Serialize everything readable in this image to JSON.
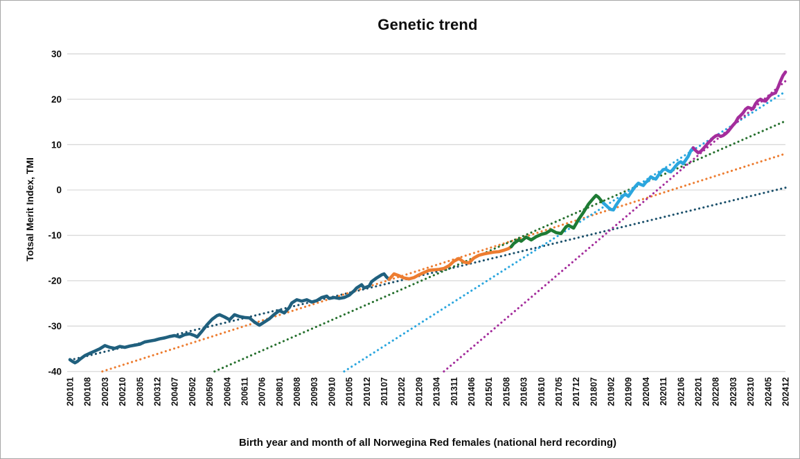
{
  "window": {
    "background": "#ffffff",
    "border_color": "#a6a6a6",
    "gridline_color": "#d9d9d9",
    "text_color": "#0d0d0d"
  },
  "chart_data": {
    "type": "line",
    "title": "Genetic trend",
    "xlabel": "Birth year and month of all Norwegina Red females (national herd recording)",
    "ylabel": "Totsal Merit Index, TMI",
    "ylim": [
      -40,
      30
    ],
    "y_ticks": [
      30,
      20,
      10,
      0,
      -10,
      -20,
      -30,
      -40
    ],
    "grid": "horizontal",
    "legend": "none",
    "x_unit": "months since 200101 (monthly birth cohorts)",
    "x_tick_interval_months": 7,
    "x_tick_labels": [
      "200101",
      "200108",
      "200203",
      "200210",
      "200305",
      "200312",
      "200407",
      "200502",
      "200509",
      "200604",
      "200611",
      "200706",
      "200801",
      "200808",
      "200903",
      "200910",
      "201005",
      "201012",
      "201107",
      "201202",
      "201209",
      "201304",
      "201311",
      "201406",
      "201501",
      "201508",
      "201603",
      "201610",
      "201705",
      "201712",
      "201807",
      "201902",
      "201909",
      "202004",
      "202011",
      "202106",
      "202201",
      "202208",
      "202303",
      "202310",
      "202405",
      "202412"
    ],
    "series": [
      {
        "id": "tmi-cohort-2001-2011",
        "color": "#20607E",
        "points": [
          [
            0,
            -37.4
          ],
          [
            1,
            -37.8
          ],
          [
            2,
            -38.1
          ],
          [
            3,
            -37.8
          ],
          [
            4,
            -37.3
          ],
          [
            6,
            -36.5
          ],
          [
            8,
            -36.0
          ],
          [
            10,
            -35.5
          ],
          [
            12,
            -35.0
          ],
          [
            14,
            -34.3
          ],
          [
            16,
            -34.7
          ],
          [
            18,
            -34.9
          ],
          [
            20,
            -34.5
          ],
          [
            22,
            -34.7
          ],
          [
            24,
            -34.4
          ],
          [
            26,
            -34.2
          ],
          [
            28,
            -34.0
          ],
          [
            30,
            -33.5
          ],
          [
            32,
            -33.3
          ],
          [
            34,
            -33.1
          ],
          [
            36,
            -32.8
          ],
          [
            38,
            -32.6
          ],
          [
            40,
            -32.3
          ],
          [
            42,
            -32.1
          ],
          [
            44,
            -32.4
          ],
          [
            46,
            -31.9
          ],
          [
            48,
            -31.7
          ],
          [
            50,
            -32.1
          ],
          [
            51,
            -32.4
          ],
          [
            53,
            -31.1
          ],
          [
            55,
            -29.7
          ],
          [
            57,
            -28.5
          ],
          [
            59,
            -27.7
          ],
          [
            60,
            -27.5
          ],
          [
            62,
            -28.0
          ],
          [
            64,
            -28.6
          ],
          [
            66,
            -27.5
          ],
          [
            68,
            -27.9
          ],
          [
            70,
            -28.1
          ],
          [
            72,
            -28.2
          ],
          [
            74,
            -29.1
          ],
          [
            76,
            -29.8
          ],
          [
            78,
            -29.1
          ],
          [
            80,
            -28.4
          ],
          [
            82,
            -27.4
          ],
          [
            84,
            -26.6
          ],
          [
            86,
            -27.1
          ],
          [
            88,
            -25.9
          ],
          [
            89,
            -24.9
          ],
          [
            91,
            -24.2
          ],
          [
            93,
            -24.5
          ],
          [
            95,
            -24.2
          ],
          [
            97,
            -24.7
          ],
          [
            99,
            -24.4
          ],
          [
            101,
            -23.7
          ],
          [
            103,
            -23.4
          ],
          [
            104,
            -23.9
          ],
          [
            106,
            -23.7
          ],
          [
            108,
            -23.9
          ],
          [
            110,
            -23.7
          ],
          [
            112,
            -23.2
          ],
          [
            114,
            -22.2
          ],
          [
            115,
            -21.6
          ],
          [
            117,
            -20.9
          ],
          [
            118,
            -21.6
          ],
          [
            120,
            -21.2
          ],
          [
            121,
            -20.2
          ],
          [
            123,
            -19.4
          ],
          [
            125,
            -18.7
          ],
          [
            126,
            -18.5
          ],
          [
            127,
            -19.2
          ],
          [
            128,
            -19.7
          ]
        ]
      },
      {
        "id": "tmi-cohort-2011-2015",
        "color": "#ED7D31",
        "points": [
          [
            128,
            -19.7
          ],
          [
            130,
            -18.5
          ],
          [
            132,
            -18.9
          ],
          [
            134,
            -19.4
          ],
          [
            136,
            -19.6
          ],
          [
            138,
            -19.3
          ],
          [
            140,
            -18.7
          ],
          [
            142,
            -18.2
          ],
          [
            144,
            -17.7
          ],
          [
            146,
            -17.6
          ],
          [
            148,
            -17.5
          ],
          [
            150,
            -17.3
          ],
          [
            152,
            -16.7
          ],
          [
            154,
            -15.7
          ],
          [
            156,
            -15.1
          ],
          [
            158,
            -15.9
          ],
          [
            160,
            -16.1
          ],
          [
            162,
            -15.0
          ],
          [
            164,
            -14.4
          ],
          [
            166,
            -14.1
          ],
          [
            168,
            -13.9
          ],
          [
            170,
            -13.7
          ],
          [
            172,
            -13.6
          ],
          [
            174,
            -13.3
          ],
          [
            176,
            -12.9
          ],
          [
            177,
            -12.5
          ]
        ]
      },
      {
        "id": "tmi-cohort-2015-2018",
        "color": "#1E7B34",
        "points": [
          [
            177,
            -12.5
          ],
          [
            178,
            -11.8
          ],
          [
            180,
            -11.0
          ],
          [
            181,
            -11.3
          ],
          [
            183,
            -10.4
          ],
          [
            185,
            -11.0
          ],
          [
            187,
            -10.3
          ],
          [
            189,
            -9.8
          ],
          [
            191,
            -9.5
          ],
          [
            193,
            -8.8
          ],
          [
            195,
            -9.4
          ],
          [
            197,
            -9.6
          ],
          [
            199,
            -8.1
          ],
          [
            200,
            -7.8
          ],
          [
            202,
            -8.4
          ],
          [
            204,
            -6.5
          ],
          [
            206,
            -4.9
          ],
          [
            208,
            -3.1
          ],
          [
            210,
            -1.8
          ],
          [
            211,
            -1.2
          ],
          [
            212,
            -1.6
          ],
          [
            213,
            -2.3
          ],
          [
            214,
            -2.9
          ]
        ]
      },
      {
        "id": "tmi-cohort-2019-2021",
        "color": "#2BA6DE",
        "points": [
          [
            214,
            -2.9
          ],
          [
            215,
            -3.4
          ],
          [
            216,
            -3.9
          ],
          [
            217,
            -4.3
          ],
          [
            218,
            -4.4
          ],
          [
            219,
            -3.4
          ],
          [
            220,
            -2.6
          ],
          [
            221,
            -1.8
          ],
          [
            222,
            -1.2
          ],
          [
            223,
            -1.0
          ],
          [
            224,
            -1.4
          ],
          [
            225,
            -0.6
          ],
          [
            226,
            0.2
          ],
          [
            227,
            0.9
          ],
          [
            228,
            1.5
          ],
          [
            229,
            1.2
          ],
          [
            230,
            1.0
          ],
          [
            231,
            1.7
          ],
          [
            232,
            2.1
          ],
          [
            233,
            2.9
          ],
          [
            234,
            2.6
          ],
          [
            235,
            2.4
          ],
          [
            236,
            3.2
          ],
          [
            237,
            3.9
          ],
          [
            238,
            4.5
          ],
          [
            239,
            4.6
          ],
          [
            240,
            4.2
          ],
          [
            241,
            4.0
          ],
          [
            242,
            4.6
          ],
          [
            243,
            5.3
          ],
          [
            244,
            5.9
          ],
          [
            245,
            6.2
          ],
          [
            246,
            5.8
          ],
          [
            247,
            6.6
          ],
          [
            248,
            7.4
          ],
          [
            249,
            8.6
          ],
          [
            250,
            9.3
          ]
        ]
      },
      {
        "id": "tmi-cohort-2022-2024",
        "color": "#A42D9C",
        "points": [
          [
            250,
            9.3
          ],
          [
            251,
            8.7
          ],
          [
            252,
            8.2
          ],
          [
            253,
            8.5
          ],
          [
            254,
            9.1
          ],
          [
            255,
            9.7
          ],
          [
            256,
            10.4
          ],
          [
            257,
            10.9
          ],
          [
            258,
            11.5
          ],
          [
            259,
            11.9
          ],
          [
            260,
            12.1
          ],
          [
            261,
            11.8
          ],
          [
            262,
            12.0
          ],
          [
            263,
            12.4
          ],
          [
            264,
            12.9
          ],
          [
            265,
            13.6
          ],
          [
            266,
            14.3
          ],
          [
            267,
            14.9
          ],
          [
            268,
            15.9
          ],
          [
            269,
            16.4
          ],
          [
            270,
            17.0
          ],
          [
            271,
            17.8
          ],
          [
            272,
            18.2
          ],
          [
            273,
            18.0
          ],
          [
            274,
            17.9
          ],
          [
            275,
            19.0
          ],
          [
            276,
            19.7
          ],
          [
            277,
            20.0
          ],
          [
            278,
            19.7
          ],
          [
            279,
            19.6
          ],
          [
            280,
            20.3
          ],
          [
            281,
            20.9
          ],
          [
            282,
            21.2
          ],
          [
            283,
            21.4
          ],
          [
            284,
            22.6
          ],
          [
            285,
            24.0
          ],
          [
            286,
            25.2
          ],
          [
            287,
            26.0
          ]
        ]
      }
    ],
    "trendlines": [
      {
        "id": "trend-2001-2011",
        "color": "#1B506B",
        "from": [
          0,
          -37.5
        ],
        "to": [
          287,
          0.5
        ]
      },
      {
        "id": "trend-2011-2015",
        "color": "#ED7D31",
        "from": [
          13,
          -40
        ],
        "to": [
          287,
          8.0
        ]
      },
      {
        "id": "trend-2015-2018",
        "color": "#26702E",
        "from": [
          58,
          -40
        ],
        "to": [
          287,
          15.2
        ]
      },
      {
        "id": "trend-2019-2021",
        "color": "#2BA6DE",
        "from": [
          110,
          -40
        ],
        "to": [
          287,
          21.7
        ]
      },
      {
        "id": "trend-2022-2024",
        "color": "#A42D9C",
        "from": [
          150,
          -40
        ],
        "to": [
          287,
          24.0
        ]
      }
    ]
  }
}
